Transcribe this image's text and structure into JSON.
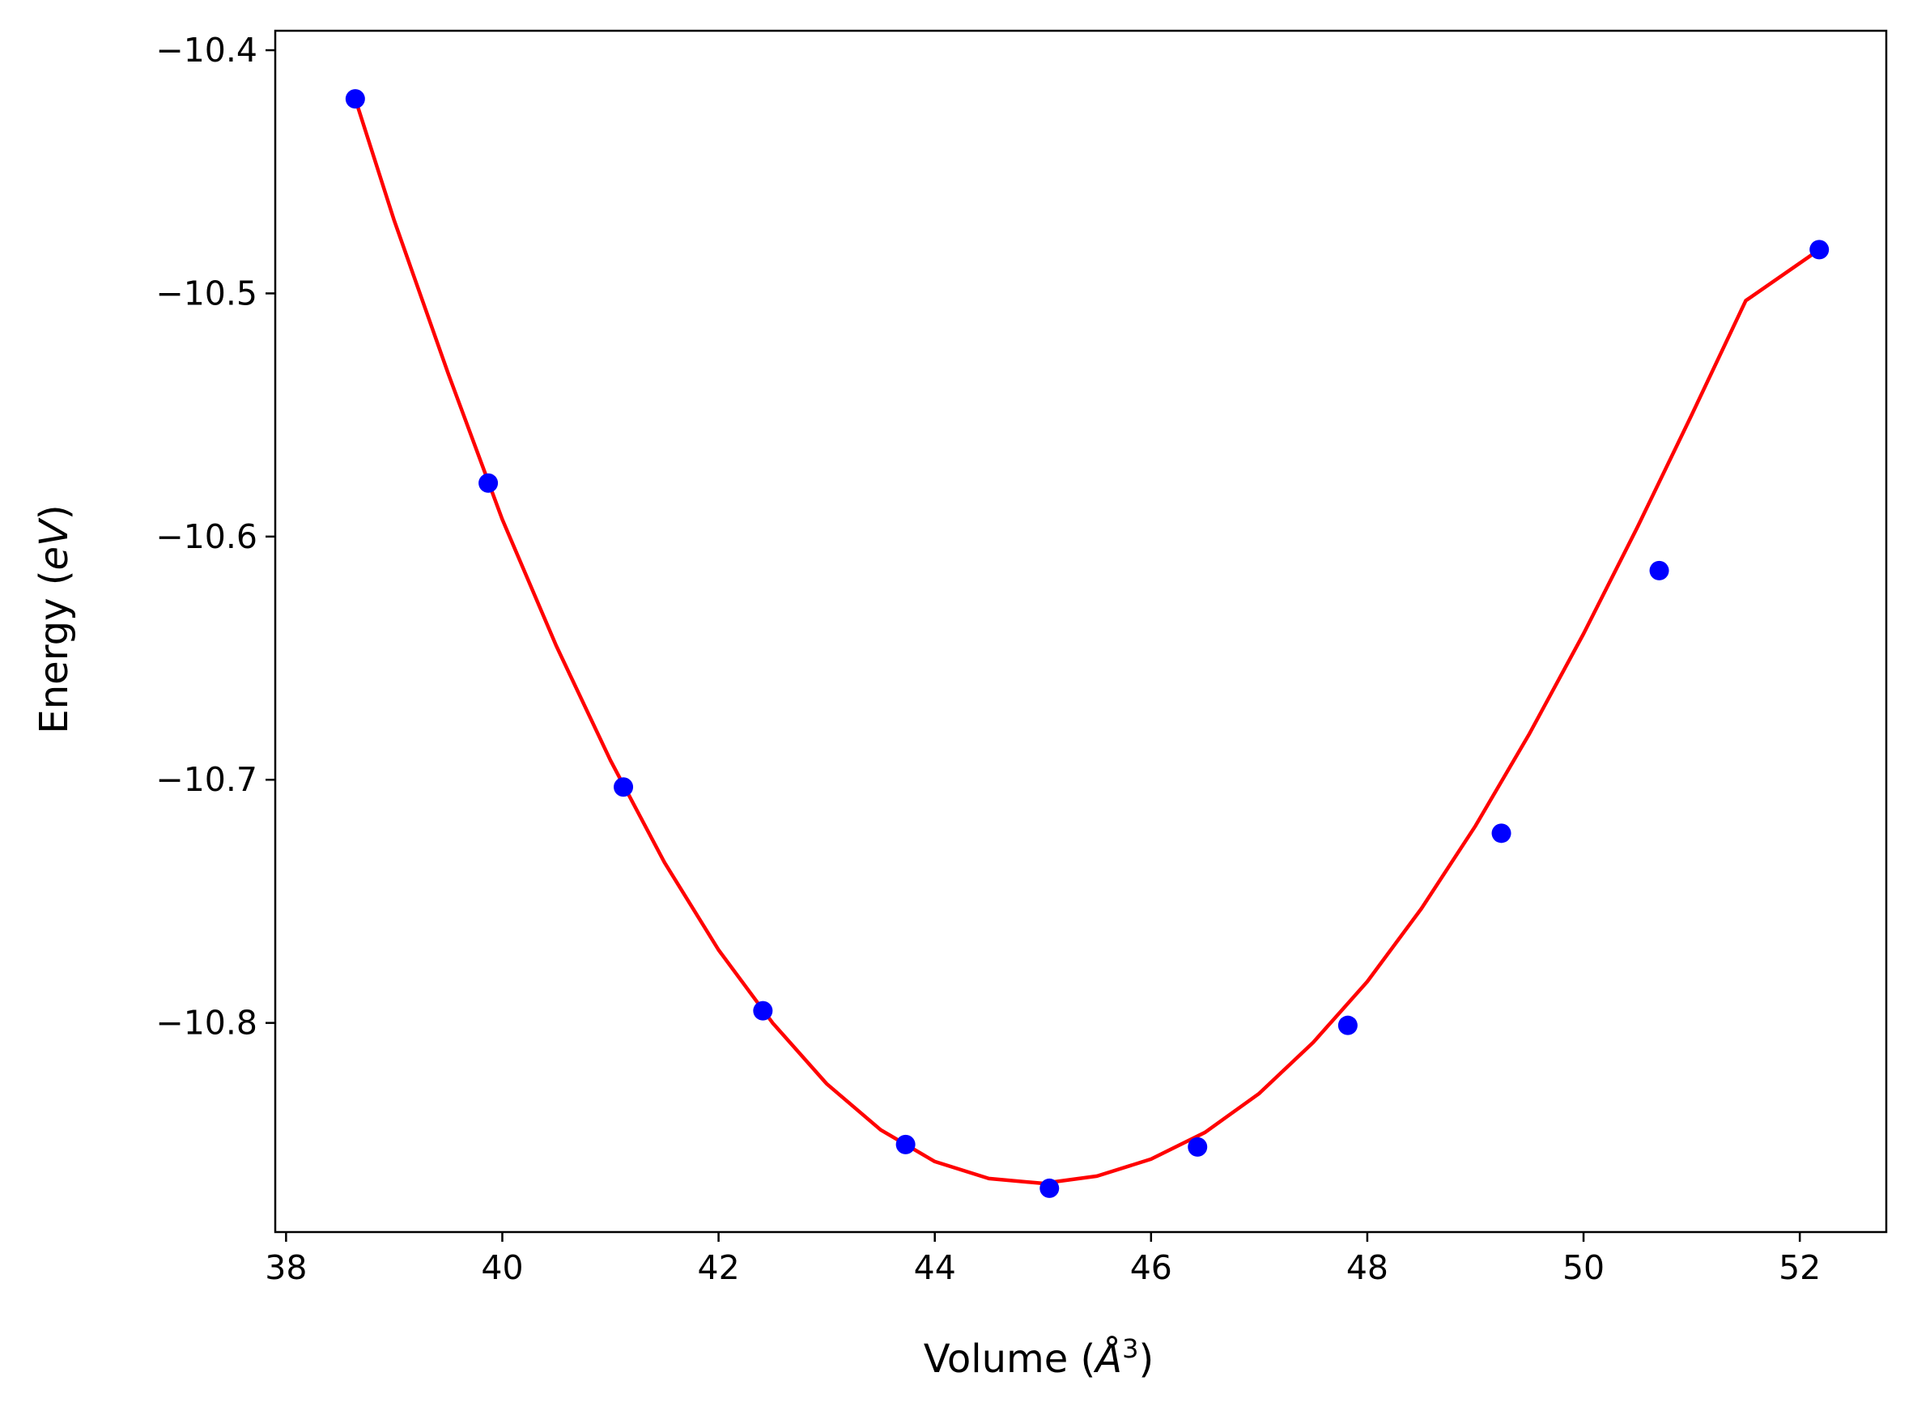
{
  "chart_data": {
    "type": "scatter",
    "title": "",
    "xlabel": "Volume (Å³)",
    "xlabel_parts": {
      "prefix": "Volume (",
      "unit": "Å",
      "exponent": "3",
      "suffix": ")"
    },
    "ylabel": "Energy (eV)",
    "ylabel_parts": {
      "prefix": "Energy (",
      "unit": "eV",
      "suffix": ")"
    },
    "xlim": [
      37.9,
      52.8
    ],
    "ylim": [
      -10.886,
      -10.392
    ],
    "xticks": [
      38,
      40,
      42,
      44,
      46,
      48,
      50,
      52
    ],
    "xtick_labels": [
      "38",
      "40",
      "42",
      "44",
      "46",
      "48",
      "50",
      "52"
    ],
    "yticks": [
      -10.8,
      -10.7,
      -10.6,
      -10.5,
      -10.4
    ],
    "ytick_labels": [
      "−10.8",
      "−10.7",
      "−10.6",
      "−10.5",
      "−10.4"
    ],
    "grid": false,
    "series": [
      {
        "kind": "markers",
        "color": "#0000ff",
        "x": [
          38.64,
          39.87,
          41.12,
          42.41,
          43.73,
          45.06,
          46.43,
          47.82,
          49.24,
          50.7,
          52.18
        ],
        "y": [
          -10.42,
          -10.578,
          -10.703,
          -10.795,
          -10.85,
          -10.868,
          -10.851,
          -10.801,
          -10.722,
          -10.614,
          -10.482
        ]
      },
      {
        "kind": "line",
        "color": "#ff0000",
        "x": [
          38.64,
          39.0,
          39.5,
          40.0,
          40.5,
          41.0,
          41.5,
          42.0,
          42.5,
          43.0,
          43.5,
          44.0,
          44.5,
          45.0,
          45.5,
          46.0,
          46.5,
          47.0,
          47.5,
          48.0,
          48.5,
          49.0,
          49.5,
          50.0,
          50.5,
          51.0,
          51.5,
          52.18
        ],
        "y": [
          -10.42,
          -10.47,
          -10.533,
          -10.593,
          -10.645,
          -10.692,
          -10.734,
          -10.77,
          -10.8,
          -10.825,
          -10.844,
          -10.857,
          -10.864,
          -10.866,
          -10.863,
          -10.856,
          -10.845,
          -10.829,
          -10.808,
          -10.783,
          -10.753,
          -10.719,
          -10.681,
          -10.64,
          -10.596,
          -10.55,
          -10.503,
          -10.482
        ]
      }
    ]
  }
}
